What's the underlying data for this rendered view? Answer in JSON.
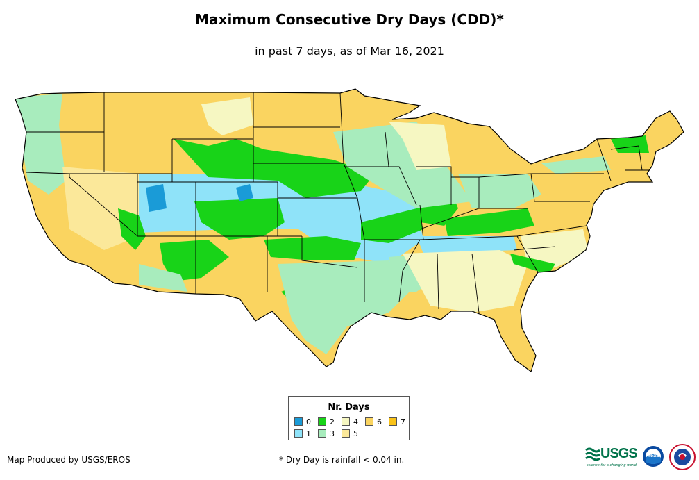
{
  "header": {
    "title": "Maximum Consecutive Dry Days (CDD)*",
    "subtitle": "in past 7 days, as of Mar 16, 2021"
  },
  "legend": {
    "title": "Nr. Days",
    "items": [
      {
        "label": "0",
        "color": "#1a9bd7"
      },
      {
        "label": "1",
        "color": "#8fe3f9"
      },
      {
        "label": "2",
        "color": "#18d318"
      },
      {
        "label": "3",
        "color": "#a8ecbd"
      },
      {
        "label": "4",
        "color": "#f6f7c2"
      },
      {
        "label": "5",
        "color": "#fbe89a"
      },
      {
        "label": "6",
        "color": "#fad460"
      },
      {
        "label": "7",
        "color": "#f9c218"
      }
    ]
  },
  "footer": {
    "credit": "Map Produced by USGS/EROS",
    "note": "* Dry Day is rainfall < 0.04 in."
  },
  "logos": {
    "usgs": "USGS",
    "usgs_tagline": "science for a changing world",
    "noaa": "noaa",
    "nws_icon": "nws-icon"
  }
}
